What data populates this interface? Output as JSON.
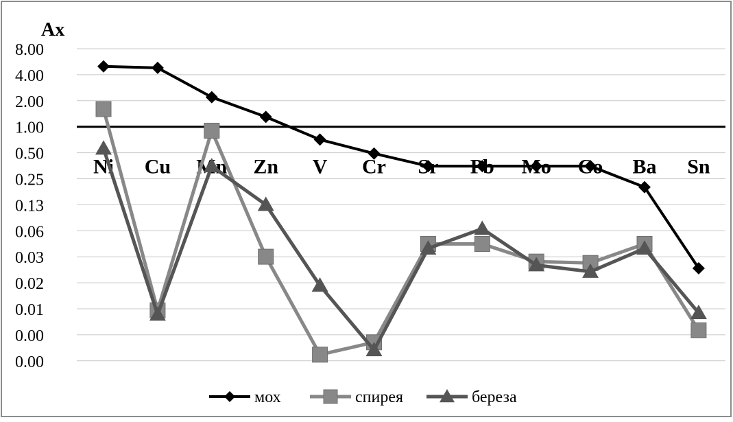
{
  "chart_data": {
    "type": "line",
    "title": "",
    "ylabel": "Ax",
    "xlabel": "",
    "y_scale": "log2",
    "ylim": [
      0.0038,
      8.0
    ],
    "y_ticks": [
      {
        "value": 8.0,
        "label": "8.00"
      },
      {
        "value": 4.0,
        "label": "4.00"
      },
      {
        "value": 2.0,
        "label": "2.00"
      },
      {
        "value": 1.0,
        "label": "1.00"
      },
      {
        "value": 0.5,
        "label": "0.50"
      },
      {
        "value": 0.25,
        "label": "0.25"
      },
      {
        "value": 0.125,
        "label": "0.13"
      },
      {
        "value": 0.0625,
        "label": "0.06"
      },
      {
        "value": 0.03125,
        "label": "0.03"
      },
      {
        "value": 0.015625,
        "label": "0.02"
      },
      {
        "value": 0.0078125,
        "label": "0.01"
      },
      {
        "value": 0.00390625,
        "label": "0.00"
      },
      {
        "value": 0.001953125,
        "label": "0.00"
      }
    ],
    "reference_line": 1.0,
    "categories": [
      "Ni",
      "Cu",
      "Mn",
      "Zn",
      "V",
      "Cr",
      "Sr",
      "Pb",
      "Mo",
      "Co",
      "Ba",
      "Sn"
    ],
    "series": [
      {
        "name": "мох",
        "color": "#000000",
        "marker": "diamond",
        "values": [
          5.0,
          4.8,
          2.2,
          1.3,
          0.71,
          0.49,
          0.35,
          0.35,
          0.35,
          0.35,
          0.2,
          0.023
        ]
      },
      {
        "name": "спирея",
        "color": "#888888",
        "marker": "square",
        "values": [
          1.6,
          0.0075,
          0.9,
          0.0313,
          0.0023,
          0.0032,
          0.044,
          0.044,
          0.0275,
          0.0265,
          0.044,
          0.0044
        ]
      },
      {
        "name": "береза",
        "color": "#555555",
        "marker": "triangle",
        "values": [
          0.56,
          0.0067,
          0.35,
          0.125,
          0.0145,
          0.0026,
          0.039,
          0.066,
          0.025,
          0.021,
          0.039,
          0.007
        ]
      }
    ],
    "legend_position": "bottom",
    "grid": "horizontal"
  }
}
